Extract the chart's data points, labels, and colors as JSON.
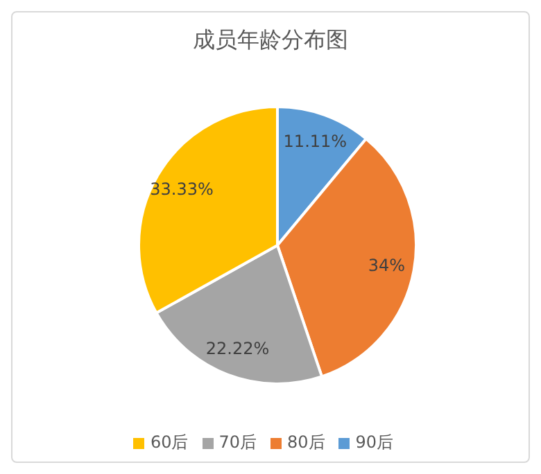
{
  "chart_data": {
    "type": "pie",
    "title": "成员年龄分布图",
    "categories": [
      "90后",
      "80后",
      "70后",
      "60后"
    ],
    "values": [
      11.11,
      34,
      22.22,
      33.33
    ],
    "value_labels": [
      "11.11%",
      "34%",
      "22.22%",
      "33.33%"
    ],
    "colors": [
      "#5b9bd5",
      "#ed7d31",
      "#a5a5a5",
      "#ffc000"
    ],
    "legend": "bottom"
  }
}
